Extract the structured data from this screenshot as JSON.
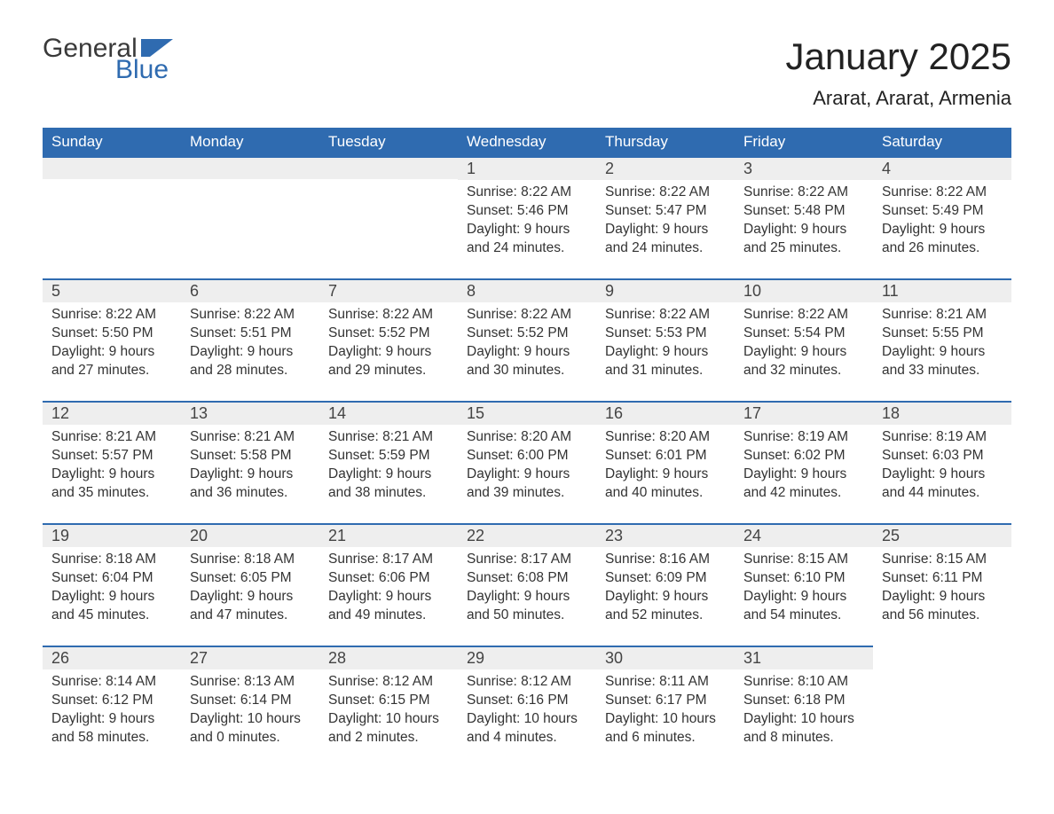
{
  "logo": {
    "word1": "General",
    "word2": "Blue"
  },
  "header": {
    "month_title": "January 2025",
    "location": "Ararat, Ararat, Armenia"
  },
  "colors": {
    "header_bg": "#2f6bb0",
    "header_text": "#ffffff",
    "daynum_bg": "#eeeeee",
    "daynum_border": "#2f6bb0",
    "text": "#333333",
    "page_bg": "#ffffff",
    "logo_blue": "#2f6bb0"
  },
  "weekdays": [
    "Sunday",
    "Monday",
    "Tuesday",
    "Wednesday",
    "Thursday",
    "Friday",
    "Saturday"
  ],
  "weeks": [
    [
      null,
      null,
      null,
      {
        "n": "1",
        "sr": "Sunrise: 8:22 AM",
        "ss": "Sunset: 5:46 PM",
        "d1": "Daylight: 9 hours",
        "d2": "and 24 minutes."
      },
      {
        "n": "2",
        "sr": "Sunrise: 8:22 AM",
        "ss": "Sunset: 5:47 PM",
        "d1": "Daylight: 9 hours",
        "d2": "and 24 minutes."
      },
      {
        "n": "3",
        "sr": "Sunrise: 8:22 AM",
        "ss": "Sunset: 5:48 PM",
        "d1": "Daylight: 9 hours",
        "d2": "and 25 minutes."
      },
      {
        "n": "4",
        "sr": "Sunrise: 8:22 AM",
        "ss": "Sunset: 5:49 PM",
        "d1": "Daylight: 9 hours",
        "d2": "and 26 minutes."
      }
    ],
    [
      {
        "n": "5",
        "sr": "Sunrise: 8:22 AM",
        "ss": "Sunset: 5:50 PM",
        "d1": "Daylight: 9 hours",
        "d2": "and 27 minutes."
      },
      {
        "n": "6",
        "sr": "Sunrise: 8:22 AM",
        "ss": "Sunset: 5:51 PM",
        "d1": "Daylight: 9 hours",
        "d2": "and 28 minutes."
      },
      {
        "n": "7",
        "sr": "Sunrise: 8:22 AM",
        "ss": "Sunset: 5:52 PM",
        "d1": "Daylight: 9 hours",
        "d2": "and 29 minutes."
      },
      {
        "n": "8",
        "sr": "Sunrise: 8:22 AM",
        "ss": "Sunset: 5:52 PM",
        "d1": "Daylight: 9 hours",
        "d2": "and 30 minutes."
      },
      {
        "n": "9",
        "sr": "Sunrise: 8:22 AM",
        "ss": "Sunset: 5:53 PM",
        "d1": "Daylight: 9 hours",
        "d2": "and 31 minutes."
      },
      {
        "n": "10",
        "sr": "Sunrise: 8:22 AM",
        "ss": "Sunset: 5:54 PM",
        "d1": "Daylight: 9 hours",
        "d2": "and 32 minutes."
      },
      {
        "n": "11",
        "sr": "Sunrise: 8:21 AM",
        "ss": "Sunset: 5:55 PM",
        "d1": "Daylight: 9 hours",
        "d2": "and 33 minutes."
      }
    ],
    [
      {
        "n": "12",
        "sr": "Sunrise: 8:21 AM",
        "ss": "Sunset: 5:57 PM",
        "d1": "Daylight: 9 hours",
        "d2": "and 35 minutes."
      },
      {
        "n": "13",
        "sr": "Sunrise: 8:21 AM",
        "ss": "Sunset: 5:58 PM",
        "d1": "Daylight: 9 hours",
        "d2": "and 36 minutes."
      },
      {
        "n": "14",
        "sr": "Sunrise: 8:21 AM",
        "ss": "Sunset: 5:59 PM",
        "d1": "Daylight: 9 hours",
        "d2": "and 38 minutes."
      },
      {
        "n": "15",
        "sr": "Sunrise: 8:20 AM",
        "ss": "Sunset: 6:00 PM",
        "d1": "Daylight: 9 hours",
        "d2": "and 39 minutes."
      },
      {
        "n": "16",
        "sr": "Sunrise: 8:20 AM",
        "ss": "Sunset: 6:01 PM",
        "d1": "Daylight: 9 hours",
        "d2": "and 40 minutes."
      },
      {
        "n": "17",
        "sr": "Sunrise: 8:19 AM",
        "ss": "Sunset: 6:02 PM",
        "d1": "Daylight: 9 hours",
        "d2": "and 42 minutes."
      },
      {
        "n": "18",
        "sr": "Sunrise: 8:19 AM",
        "ss": "Sunset: 6:03 PM",
        "d1": "Daylight: 9 hours",
        "d2": "and 44 minutes."
      }
    ],
    [
      {
        "n": "19",
        "sr": "Sunrise: 8:18 AM",
        "ss": "Sunset: 6:04 PM",
        "d1": "Daylight: 9 hours",
        "d2": "and 45 minutes."
      },
      {
        "n": "20",
        "sr": "Sunrise: 8:18 AM",
        "ss": "Sunset: 6:05 PM",
        "d1": "Daylight: 9 hours",
        "d2": "and 47 minutes."
      },
      {
        "n": "21",
        "sr": "Sunrise: 8:17 AM",
        "ss": "Sunset: 6:06 PM",
        "d1": "Daylight: 9 hours",
        "d2": "and 49 minutes."
      },
      {
        "n": "22",
        "sr": "Sunrise: 8:17 AM",
        "ss": "Sunset: 6:08 PM",
        "d1": "Daylight: 9 hours",
        "d2": "and 50 minutes."
      },
      {
        "n": "23",
        "sr": "Sunrise: 8:16 AM",
        "ss": "Sunset: 6:09 PM",
        "d1": "Daylight: 9 hours",
        "d2": "and 52 minutes."
      },
      {
        "n": "24",
        "sr": "Sunrise: 8:15 AM",
        "ss": "Sunset: 6:10 PM",
        "d1": "Daylight: 9 hours",
        "d2": "and 54 minutes."
      },
      {
        "n": "25",
        "sr": "Sunrise: 8:15 AM",
        "ss": "Sunset: 6:11 PM",
        "d1": "Daylight: 9 hours",
        "d2": "and 56 minutes."
      }
    ],
    [
      {
        "n": "26",
        "sr": "Sunrise: 8:14 AM",
        "ss": "Sunset: 6:12 PM",
        "d1": "Daylight: 9 hours",
        "d2": "and 58 minutes."
      },
      {
        "n": "27",
        "sr": "Sunrise: 8:13 AM",
        "ss": "Sunset: 6:14 PM",
        "d1": "Daylight: 10 hours",
        "d2": "and 0 minutes."
      },
      {
        "n": "28",
        "sr": "Sunrise: 8:12 AM",
        "ss": "Sunset: 6:15 PM",
        "d1": "Daylight: 10 hours",
        "d2": "and 2 minutes."
      },
      {
        "n": "29",
        "sr": "Sunrise: 8:12 AM",
        "ss": "Sunset: 6:16 PM",
        "d1": "Daylight: 10 hours",
        "d2": "and 4 minutes."
      },
      {
        "n": "30",
        "sr": "Sunrise: 8:11 AM",
        "ss": "Sunset: 6:17 PM",
        "d1": "Daylight: 10 hours",
        "d2": "and 6 minutes."
      },
      {
        "n": "31",
        "sr": "Sunrise: 8:10 AM",
        "ss": "Sunset: 6:18 PM",
        "d1": "Daylight: 10 hours",
        "d2": "and 8 minutes."
      },
      null
    ]
  ]
}
